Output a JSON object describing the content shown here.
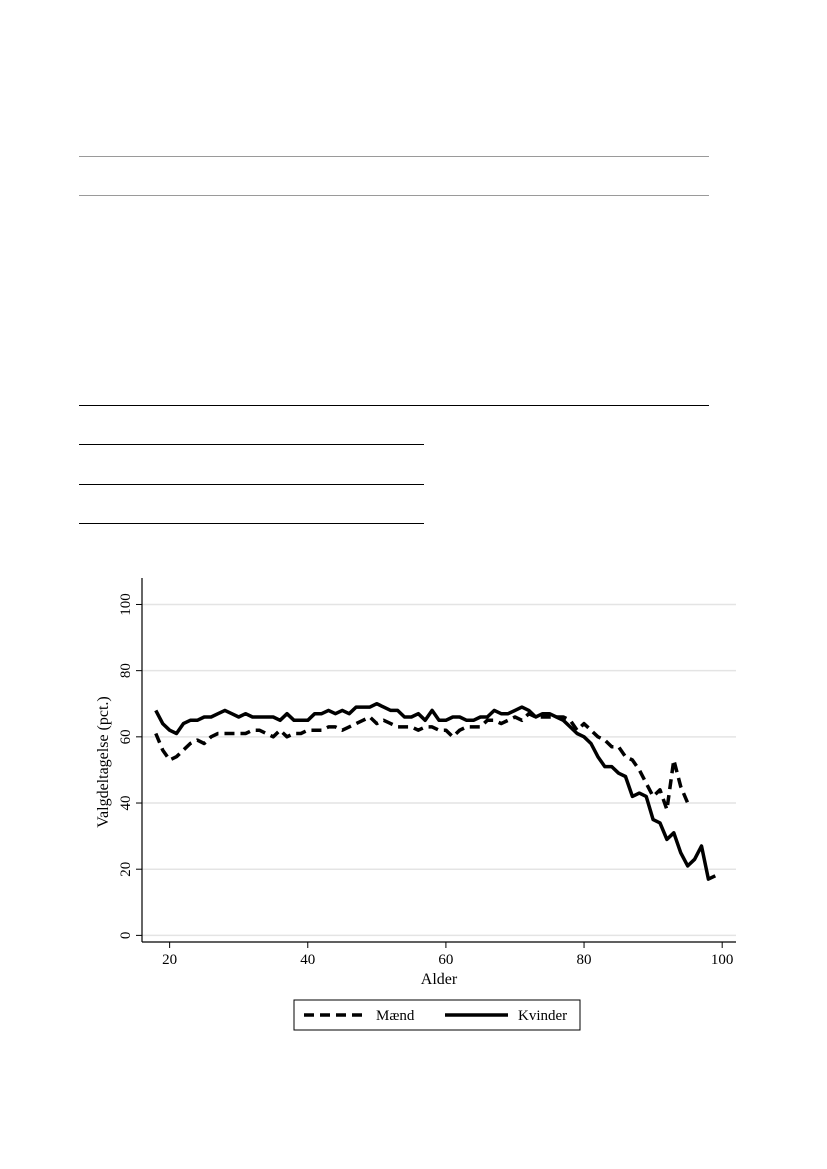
{
  "document": {
    "rules": [
      "top-table-rule-1",
      "top-table-rule-2",
      "mid-table-rule",
      "short-rule-1",
      "short-rule-2",
      "short-rule-3"
    ]
  },
  "chart_data": {
    "type": "line",
    "title": "",
    "xlabel": "Alder",
    "ylabel": "Valgdeltagelse (pct.)",
    "xlim": [
      16,
      102
    ],
    "ylim": [
      -2,
      108
    ],
    "xticks": [
      20,
      40,
      60,
      80,
      100
    ],
    "yticks": [
      0,
      20,
      40,
      60,
      80,
      100
    ],
    "grid": true,
    "legend_position": "bottom-center",
    "series": [
      {
        "name": "Mænd",
        "style": "dashed",
        "color": "#000000",
        "x": [
          18,
          19,
          20,
          21,
          22,
          23,
          24,
          25,
          26,
          27,
          28,
          29,
          30,
          31,
          32,
          33,
          34,
          35,
          36,
          37,
          38,
          39,
          40,
          41,
          42,
          43,
          44,
          45,
          46,
          47,
          48,
          49,
          50,
          51,
          52,
          53,
          54,
          55,
          56,
          57,
          58,
          59,
          60,
          61,
          62,
          63,
          64,
          65,
          66,
          67,
          68,
          69,
          70,
          71,
          72,
          73,
          74,
          75,
          76,
          77,
          78,
          79,
          80,
          81,
          82,
          83,
          84,
          85,
          86,
          87,
          88,
          89,
          90,
          91,
          92,
          93,
          94,
          95
        ],
        "values": [
          61,
          56,
          53,
          54,
          56,
          58,
          59,
          58,
          60,
          61,
          61,
          61,
          61,
          61,
          62,
          62,
          61,
          60,
          62,
          60,
          61,
          61,
          62,
          62,
          62,
          63,
          63,
          62,
          63,
          64,
          65,
          66,
          64,
          65,
          64,
          63,
          63,
          63,
          62,
          63,
          63,
          62,
          62,
          60,
          62,
          63,
          63,
          63,
          65,
          65,
          64,
          65,
          66,
          65,
          67,
          66,
          66,
          66,
          66,
          66,
          65,
          62,
          64,
          62,
          60,
          59,
          57,
          57,
          54,
          53,
          50,
          46,
          42,
          44,
          38,
          53,
          45,
          40
        ]
      },
      {
        "name": "Kvinder",
        "style": "solid",
        "color": "#000000",
        "x": [
          18,
          19,
          20,
          21,
          22,
          23,
          24,
          25,
          26,
          27,
          28,
          29,
          30,
          31,
          32,
          33,
          34,
          35,
          36,
          37,
          38,
          39,
          40,
          41,
          42,
          43,
          44,
          45,
          46,
          47,
          48,
          49,
          50,
          51,
          52,
          53,
          54,
          55,
          56,
          57,
          58,
          59,
          60,
          61,
          62,
          63,
          64,
          65,
          66,
          67,
          68,
          69,
          70,
          71,
          72,
          73,
          74,
          75,
          76,
          77,
          78,
          79,
          80,
          81,
          82,
          83,
          84,
          85,
          86,
          87,
          88,
          89,
          90,
          91,
          92,
          93,
          94,
          95,
          96,
          97,
          98,
          99
        ],
        "values": [
          68,
          64,
          62,
          61,
          64,
          65,
          65,
          66,
          66,
          67,
          68,
          67,
          66,
          67,
          66,
          66,
          66,
          66,
          65,
          67,
          65,
          65,
          65,
          67,
          67,
          68,
          67,
          68,
          67,
          69,
          69,
          69,
          70,
          69,
          68,
          68,
          66,
          66,
          67,
          65,
          68,
          65,
          65,
          66,
          66,
          65,
          65,
          66,
          66,
          68,
          67,
          67,
          68,
          69,
          68,
          66,
          67,
          67,
          66,
          65,
          63,
          61,
          60,
          58,
          54,
          51,
          51,
          49,
          48,
          42,
          43,
          42,
          35,
          34,
          29,
          31,
          25,
          21,
          23,
          27,
          17,
          18
        ]
      }
    ]
  }
}
